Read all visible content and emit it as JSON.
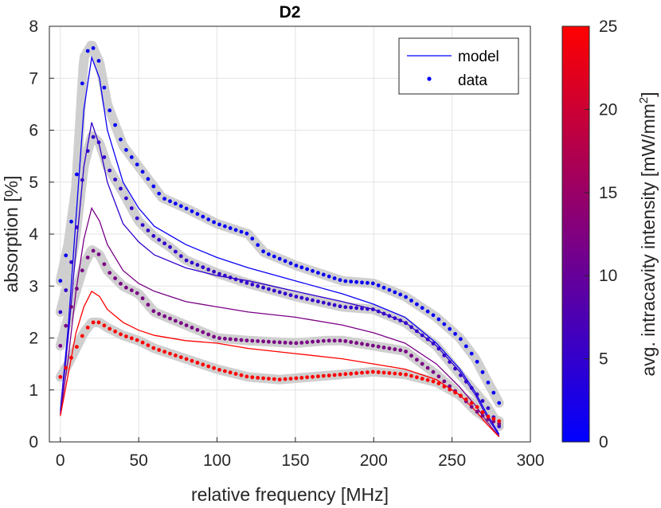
{
  "chart_data": {
    "type": "line",
    "title": "D2",
    "xlabel": "relative frequency [MHz]",
    "ylabel": "absorption [%]",
    "xlim": [
      -7,
      300
    ],
    "ylim": [
      0,
      8
    ],
    "xticks": [
      0,
      50,
      100,
      150,
      200,
      250,
      300
    ],
    "yticks": [
      0,
      1,
      2,
      3,
      4,
      5,
      6,
      7,
      8
    ],
    "grid": true,
    "legend": {
      "placement": "top-right",
      "entries": [
        {
          "label": "model",
          "marker": "line"
        },
        {
          "label": "data",
          "marker": "dot"
        }
      ]
    },
    "colorbar": {
      "label": "avg. intracavity intensity [mW/mm",
      "label_sup": "2",
      "label_end": "]",
      "range": [
        0,
        25
      ],
      "ticks": [
        0,
        5,
        10,
        15,
        20,
        25
      ],
      "color_low": "#0000ff",
      "color_high": "#ff0000"
    },
    "series": [
      {
        "intensity": 1,
        "model": {
          "x": [
            0,
            5,
            10,
            15,
            20,
            25,
            30,
            40,
            50,
            60,
            80,
            100,
            120,
            150,
            180,
            200,
            220,
            240,
            255,
            265,
            272,
            280
          ],
          "y": [
            0.6,
            2.2,
            4.3,
            6.4,
            7.4,
            7.0,
            6.0,
            5.0,
            4.5,
            4.15,
            3.8,
            3.55,
            3.35,
            3.1,
            2.85,
            2.65,
            2.4,
            1.9,
            1.4,
            0.95,
            0.55,
            0.15
          ]
        },
        "data": {
          "x": [
            0,
            5,
            10,
            15,
            20,
            25,
            30,
            40,
            50,
            60,
            65,
            80,
            100,
            120,
            130,
            150,
            160,
            180,
            200,
            220,
            240,
            255,
            265,
            272,
            280
          ],
          "y": [
            3.1,
            3.8,
            4.9,
            7.4,
            7.65,
            7.3,
            6.5,
            5.7,
            5.3,
            4.9,
            4.7,
            4.5,
            4.2,
            4.0,
            3.65,
            3.4,
            3.3,
            3.1,
            3.05,
            2.8,
            2.4,
            2.0,
            1.6,
            1.2,
            0.75
          ]
        }
      },
      {
        "intensity": 5,
        "model": {
          "x": [
            0,
            5,
            10,
            15,
            20,
            25,
            30,
            40,
            50,
            60,
            80,
            100,
            120,
            150,
            180,
            200,
            220,
            240,
            255,
            265,
            272,
            280
          ],
          "y": [
            0.55,
            2.0,
            3.7,
            5.3,
            6.15,
            5.7,
            5.0,
            4.2,
            3.85,
            3.6,
            3.35,
            3.2,
            3.1,
            2.9,
            2.7,
            2.55,
            2.3,
            1.85,
            1.35,
            0.9,
            0.5,
            0.12
          ]
        },
        "data": {
          "x": [
            0,
            5,
            10,
            15,
            20,
            25,
            30,
            40,
            50,
            60,
            70,
            80,
            100,
            120,
            150,
            180,
            200,
            220,
            240,
            255,
            265,
            272,
            280
          ],
          "y": [
            2.5,
            3.1,
            4.0,
            5.3,
            5.9,
            5.75,
            5.3,
            4.8,
            4.25,
            3.95,
            3.75,
            3.5,
            3.25,
            3.05,
            2.8,
            2.6,
            2.55,
            2.3,
            1.85,
            1.3,
            0.95,
            0.7,
            0.3
          ]
        }
      },
      {
        "intensity": 12,
        "model": {
          "x": [
            0,
            5,
            10,
            15,
            20,
            25,
            30,
            40,
            50,
            60,
            80,
            100,
            120,
            150,
            180,
            200,
            220,
            240,
            255,
            265,
            272,
            280
          ],
          "y": [
            0.52,
            1.6,
            2.9,
            3.9,
            4.5,
            4.25,
            3.8,
            3.3,
            3.05,
            2.9,
            2.7,
            2.6,
            2.5,
            2.4,
            2.25,
            2.1,
            1.9,
            1.5,
            1.05,
            0.7,
            0.4,
            0.1
          ]
        },
        "data": {
          "x": [
            0,
            5,
            10,
            15,
            20,
            25,
            30,
            40,
            50,
            60,
            80,
            100,
            120,
            150,
            170,
            180,
            200,
            220,
            240,
            255,
            265,
            272,
            280
          ],
          "y": [
            1.85,
            2.4,
            2.9,
            3.4,
            3.7,
            3.6,
            3.3,
            3.0,
            2.85,
            2.5,
            2.25,
            2.0,
            1.95,
            1.9,
            1.95,
            1.95,
            1.85,
            1.75,
            1.3,
            0.9,
            0.6,
            0.45,
            0.35
          ]
        }
      },
      {
        "intensity": 25,
        "model": {
          "x": [
            0,
            5,
            10,
            15,
            20,
            25,
            30,
            40,
            50,
            60,
            80,
            100,
            120,
            150,
            180,
            200,
            220,
            240,
            255,
            265,
            272,
            280
          ],
          "y": [
            0.5,
            1.3,
            2.1,
            2.6,
            2.9,
            2.8,
            2.55,
            2.3,
            2.15,
            2.05,
            1.95,
            1.9,
            1.8,
            1.7,
            1.6,
            1.5,
            1.4,
            1.2,
            0.9,
            0.6,
            0.35,
            0.1
          ]
        },
        "data": {
          "x": [
            0,
            5,
            10,
            15,
            20,
            25,
            30,
            40,
            50,
            60,
            80,
            100,
            120,
            140,
            160,
            180,
            200,
            220,
            240,
            255,
            265,
            272,
            280
          ],
          "y": [
            1.25,
            1.5,
            1.8,
            2.1,
            2.3,
            2.3,
            2.2,
            2.05,
            1.95,
            1.8,
            1.6,
            1.4,
            1.25,
            1.2,
            1.25,
            1.3,
            1.35,
            1.3,
            1.15,
            0.9,
            0.7,
            0.5,
            0.4
          ]
        }
      }
    ]
  }
}
